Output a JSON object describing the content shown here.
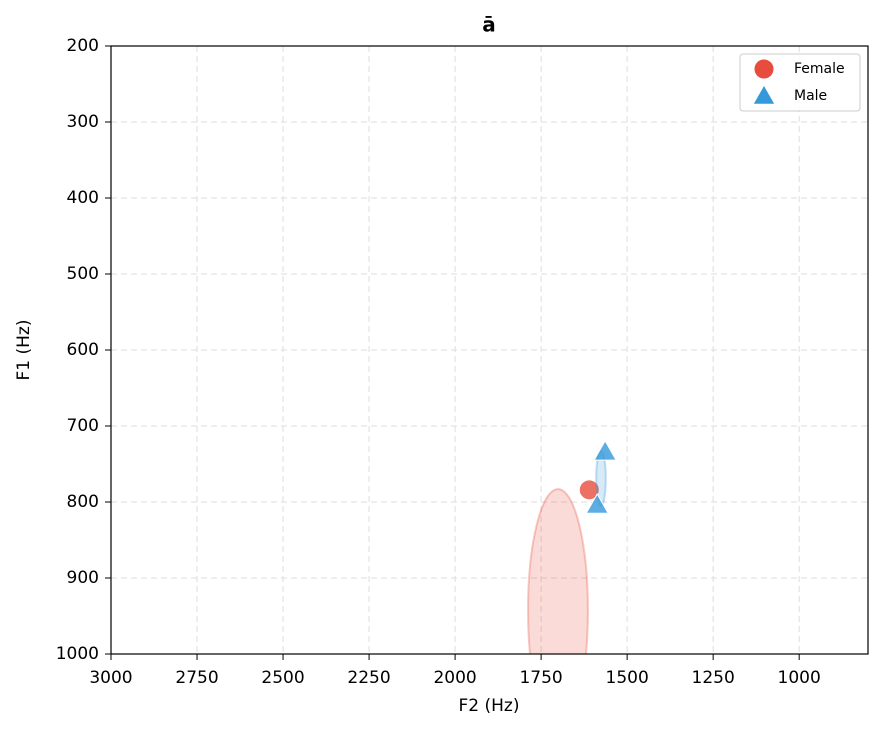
{
  "chart_data": {
    "type": "scatter",
    "title": "ā",
    "x_label": "F2 (Hz)",
    "y_label": "F1 (Hz)",
    "xlim": [
      3000,
      800
    ],
    "xticks": [
      3000,
      2750,
      2500,
      2250,
      2000,
      1750,
      1500,
      1250,
      1000
    ],
    "ylim": [
      1000,
      200
    ],
    "yticks": [
      200,
      300,
      400,
      500,
      600,
      700,
      800,
      900,
      1000
    ],
    "grid": true,
    "legend": "upper right",
    "series": [
      {
        "name": "Female",
        "color": "#e74c3c",
        "marker": "circle",
        "x": [
          1610
        ],
        "y": [
          784
        ],
        "ellipse": {
          "cx": 1701,
          "cy": 942,
          "rx": 87,
          "ry": 159
        }
      },
      {
        "name": "Male",
        "color": "#3498db",
        "marker": "triangle",
        "x": [
          1564,
          1587
        ],
        "y": [
          734,
          804
        ],
        "ellipse": {
          "cx": 1576,
          "cy": 769,
          "rx": 14,
          "ry": 36
        }
      }
    ]
  }
}
